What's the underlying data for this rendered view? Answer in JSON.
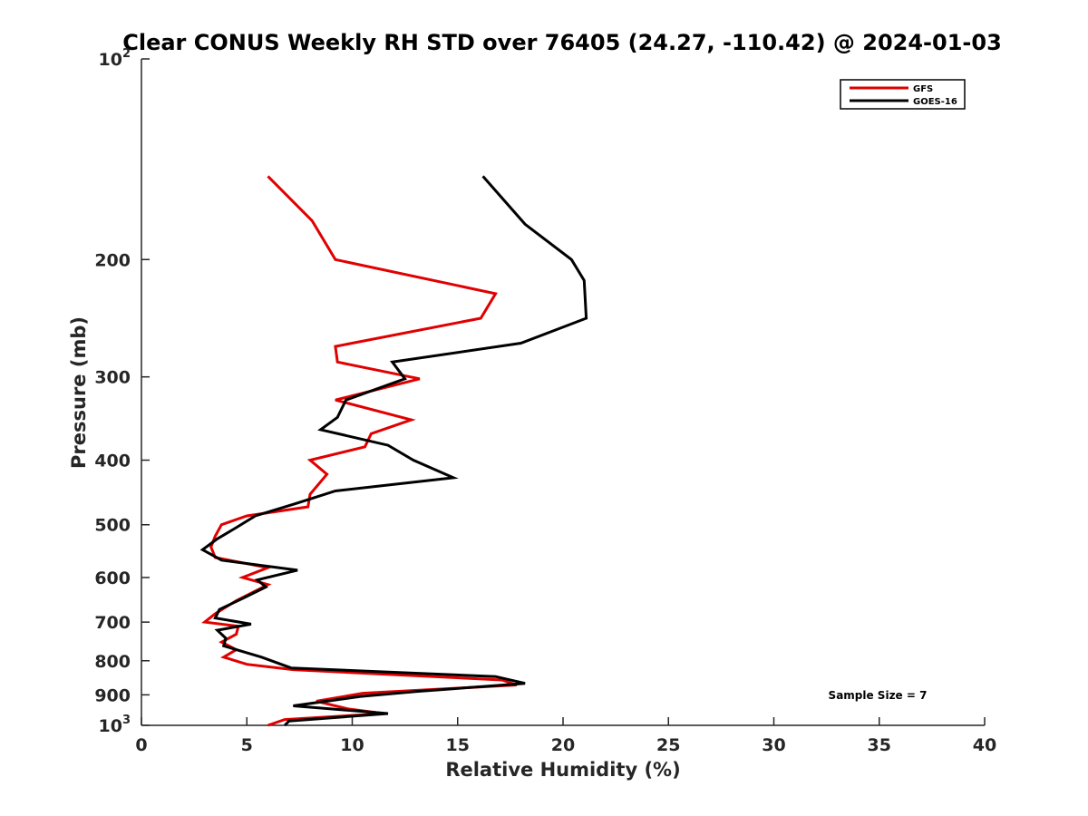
{
  "chart_data": {
    "type": "line",
    "title": "Clear CONUS Weekly RH STD over 76405 (24.27, -110.42) @ 2024-01-03",
    "xlabel": "Relative Humidity (%)",
    "ylabel": "Pressure (mb)",
    "xlim": [
      0,
      40
    ],
    "ylim": [
      100,
      1000
    ],
    "yscale": "log",
    "yreversed": true,
    "x_ticks": [
      {
        "value": 0,
        "label": "0"
      },
      {
        "value": 5,
        "label": "5"
      },
      {
        "value": 10,
        "label": "10"
      },
      {
        "value": 15,
        "label": "15"
      },
      {
        "value": 20,
        "label": "20"
      },
      {
        "value": 25,
        "label": "25"
      },
      {
        "value": 30,
        "label": "30"
      },
      {
        "value": 35,
        "label": "35"
      },
      {
        "value": 40,
        "label": "40"
      }
    ],
    "y_ticks": [
      {
        "value": 100,
        "base": "10",
        "exp": "2"
      },
      {
        "value": 200,
        "label": "200"
      },
      {
        "value": 300,
        "label": "300"
      },
      {
        "value": 400,
        "label": "400"
      },
      {
        "value": 500,
        "label": "500"
      },
      {
        "value": 600,
        "label": "600"
      },
      {
        "value": 700,
        "label": "700"
      },
      {
        "value": 800,
        "label": "800"
      },
      {
        "value": 900,
        "label": "900"
      },
      {
        "value": 1000,
        "base": "10",
        "exp": "3"
      }
    ],
    "legend": {
      "position": "top-right"
    },
    "annotation": "Sample Size = 7",
    "series": [
      {
        "name": "GFS",
        "color": "#e00000",
        "points": [
          [
            6.0,
            150
          ],
          [
            8.1,
            175
          ],
          [
            9.2,
            200
          ],
          [
            16.8,
            225
          ],
          [
            16.1,
            245
          ],
          [
            9.2,
            270
          ],
          [
            9.3,
            285
          ],
          [
            13.2,
            302
          ],
          [
            9.2,
            325
          ],
          [
            12.8,
            348
          ],
          [
            10.9,
            365
          ],
          [
            10.6,
            382
          ],
          [
            8.0,
            400
          ],
          [
            8.8,
            420
          ],
          [
            8.0,
            450
          ],
          [
            7.9,
            470
          ],
          [
            5.0,
            485
          ],
          [
            3.8,
            500
          ],
          [
            3.5,
            520
          ],
          [
            3.3,
            540
          ],
          [
            3.5,
            560
          ],
          [
            6.0,
            580
          ],
          [
            4.8,
            600
          ],
          [
            6.0,
            615
          ],
          [
            4.5,
            650
          ],
          [
            3.5,
            680
          ],
          [
            3.0,
            700
          ],
          [
            4.6,
            710
          ],
          [
            4.5,
            730
          ],
          [
            3.8,
            750
          ],
          [
            4.5,
            770
          ],
          [
            3.9,
            790
          ],
          [
            5.0,
            810
          ],
          [
            7.2,
            825
          ],
          [
            17.1,
            855
          ],
          [
            17.8,
            870
          ],
          [
            10.5,
            895
          ],
          [
            8.3,
            920
          ],
          [
            9.8,
            945
          ],
          [
            11.5,
            960
          ],
          [
            6.8,
            980
          ],
          [
            6.0,
            1000
          ]
        ]
      },
      {
        "name": "GOES-16",
        "color": "#000000",
        "points": [
          [
            16.2,
            150
          ],
          [
            18.2,
            177
          ],
          [
            20.4,
            200
          ],
          [
            21.0,
            215
          ],
          [
            21.1,
            245
          ],
          [
            18.0,
            267
          ],
          [
            11.9,
            285
          ],
          [
            12.5,
            302
          ],
          [
            9.7,
            325
          ],
          [
            9.3,
            345
          ],
          [
            8.5,
            360
          ],
          [
            11.7,
            380
          ],
          [
            12.9,
            400
          ],
          [
            14.8,
            425
          ],
          [
            9.2,
            445
          ],
          [
            7.3,
            465
          ],
          [
            5.4,
            485
          ],
          [
            4.5,
            505
          ],
          [
            3.6,
            525
          ],
          [
            2.9,
            545
          ],
          [
            3.8,
            565
          ],
          [
            7.4,
            585
          ],
          [
            5.5,
            605
          ],
          [
            5.9,
            620
          ],
          [
            4.8,
            645
          ],
          [
            3.7,
            670
          ],
          [
            3.5,
            690
          ],
          [
            5.2,
            705
          ],
          [
            3.6,
            720
          ],
          [
            4.0,
            740
          ],
          [
            3.9,
            760
          ],
          [
            5.7,
            790
          ],
          [
            7.1,
            820
          ],
          [
            16.8,
            845
          ],
          [
            18.2,
            865
          ],
          [
            13.0,
            890
          ],
          [
            10.4,
            905
          ],
          [
            7.2,
            935
          ],
          [
            11.7,
            960
          ],
          [
            7.0,
            985
          ],
          [
            6.8,
            1000
          ]
        ]
      }
    ]
  }
}
